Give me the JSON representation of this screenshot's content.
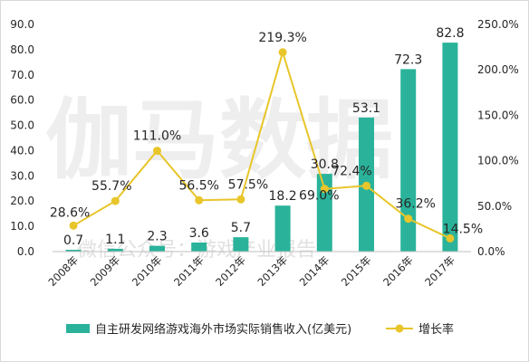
{
  "chart_data": {
    "type": "bar",
    "categories": [
      "2008年",
      "2009年",
      "2010年",
      "2011年",
      "2012年",
      "2013年",
      "2014年",
      "2015年",
      "2016年",
      "2017年"
    ],
    "series": [
      {
        "name": "自主研发网络游戏海外市场实际销售收入(亿美元)",
        "type": "bar",
        "axis": "left",
        "values": [
          0.7,
          1.1,
          2.3,
          3.6,
          5.7,
          18.2,
          30.8,
          53.1,
          72.3,
          82.8
        ],
        "labels": [
          "0.7",
          "1.1",
          "2.3",
          "3.6",
          "5.7",
          "18.2",
          "30.8",
          "53.1",
          "72.3",
          "82.8"
        ],
        "color": "#2ab39a"
      },
      {
        "name": "增长率",
        "type": "line",
        "axis": "right",
        "values": [
          28.6,
          55.7,
          111.0,
          56.5,
          57.5,
          219.3,
          69.0,
          72.4,
          36.2,
          14.5
        ],
        "labels": [
          "28.6%",
          "55.7%",
          "111.0%",
          "56.5%",
          "57.5%",
          "219.3%",
          "69.0%",
          "72.4%",
          "36.2%",
          "14.5%"
        ],
        "color": "#e8c52a"
      }
    ],
    "ylim": [
      0,
      90
    ],
    "y_ticks": [
      "0.0",
      "10.0",
      "20.0",
      "30.0",
      "40.0",
      "50.0",
      "60.0",
      "70.0",
      "80.0",
      "90.0"
    ],
    "y2lim": [
      0,
      250
    ],
    "y2_ticks": [
      "0.0%",
      "50.0%",
      "100.0%",
      "150.0%",
      "200.0%",
      "250.0%"
    ],
    "grid": false,
    "legend_position": "bottom",
    "watermark": "伽马数据",
    "watermark_sub": "微信公众号：游戏产业报告"
  }
}
